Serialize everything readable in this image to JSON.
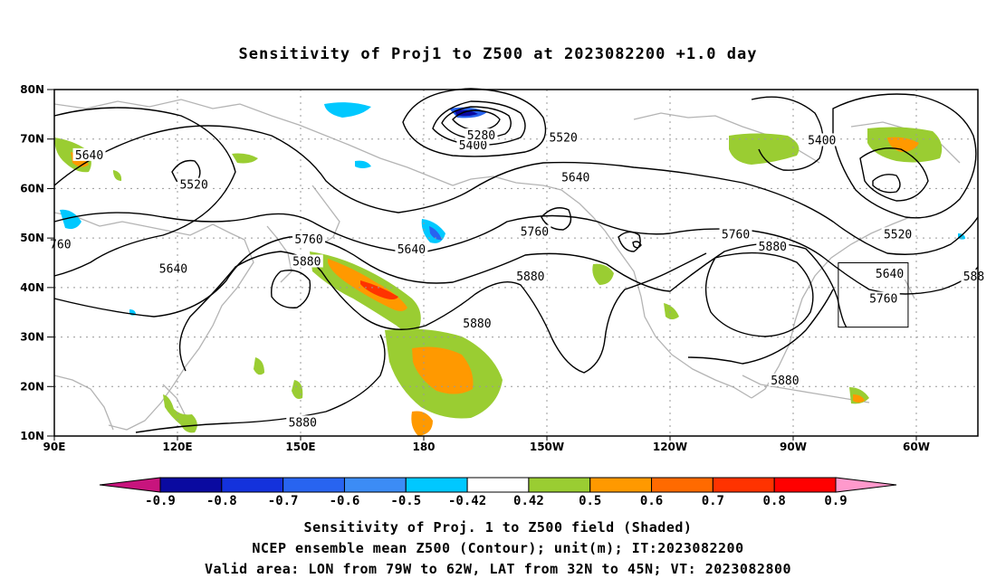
{
  "title": "Sensitivity of Proj1 to Z500 at 2023082200 +1.0 day",
  "axes": {
    "lat_ticks": [
      {
        "label": "80N",
        "value": 80
      },
      {
        "label": "70N",
        "value": 70
      },
      {
        "label": "60N",
        "value": 60
      },
      {
        "label": "50N",
        "value": 50
      },
      {
        "label": "40N",
        "value": 40
      },
      {
        "label": "30N",
        "value": 30
      },
      {
        "label": "20N",
        "value": 20
      },
      {
        "label": "10N",
        "value": 10
      }
    ],
    "lon_ticks": [
      {
        "label": "90E",
        "value": 90
      },
      {
        "label": "120E",
        "value": 120
      },
      {
        "label": "150E",
        "value": 150
      },
      {
        "label": "180",
        "value": 180
      },
      {
        "label": "150W",
        "value": 210
      },
      {
        "label": "120W",
        "value": 240
      },
      {
        "label": "90W",
        "value": 270
      },
      {
        "label": "60W",
        "value": 300
      }
    ],
    "lon_range": [
      90,
      315
    ],
    "lat_range": [
      10,
      80
    ],
    "grid": "dotted"
  },
  "colorbar": {
    "labels": [
      "-0.9",
      "-0.8",
      "-0.7",
      "-0.6",
      "-0.5",
      "-0.42",
      "0.42",
      "0.5",
      "0.6",
      "0.7",
      "0.8",
      "0.9"
    ],
    "colors": [
      "#c8147d",
      "#0a0aa0",
      "#1432dc",
      "#2864f0",
      "#3c8cf5",
      "#00c8ff",
      "#ffffff",
      "#9acd32",
      "#ff9900",
      "#ff6a00",
      "#ff3300",
      "#ff0000",
      "#ff99cc"
    ]
  },
  "contour_labels": [
    {
      "text": "5640",
      "lon": 98.5,
      "lat": 66.5
    },
    {
      "text": "5520",
      "lon": 124,
      "lat": 60.5
    },
    {
      "text": "5640",
      "lon": 119,
      "lat": 43.5
    },
    {
      "text": "760",
      "lon": 91.5,
      "lat": 48.5
    },
    {
      "text": "5760",
      "lon": 152,
      "lat": 49.5
    },
    {
      "text": "5880",
      "lon": 151.5,
      "lat": 45
    },
    {
      "text": "5640",
      "lon": 177,
      "lat": 47.5
    },
    {
      "text": "5880",
      "lon": 150.5,
      "lat": 12.5
    },
    {
      "text": "5880",
      "lon": 193,
      "lat": 32.5
    },
    {
      "text": "5880",
      "lon": 206,
      "lat": 42
    },
    {
      "text": "5760",
      "lon": 207,
      "lat": 51
    },
    {
      "text": "5400",
      "lon": 192,
      "lat": 68.5
    },
    {
      "text": "5280",
      "lon": 194,
      "lat": 70.5
    },
    {
      "text": "5520",
      "lon": 214,
      "lat": 70
    },
    {
      "text": "5640",
      "lon": 217,
      "lat": 62
    },
    {
      "text": "5760",
      "lon": 256,
      "lat": 50.5
    },
    {
      "text": "5880",
      "lon": 265,
      "lat": 48
    },
    {
      "text": "5400",
      "lon": 277,
      "lat": 69.5
    },
    {
      "text": "5520",
      "lon": 295.5,
      "lat": 50.5
    },
    {
      "text": "5640",
      "lon": 293.5,
      "lat": 42.5
    },
    {
      "text": "5760",
      "lon": 292,
      "lat": 37.5
    },
    {
      "text": "588",
      "lon": 314,
      "lat": 42
    },
    {
      "text": "5880",
      "lon": 268,
      "lat": 21
    }
  ],
  "valid_box": {
    "lon_min": 281,
    "lon_max": 298,
    "lat_min": 32,
    "lat_max": 45
  },
  "captions": {
    "line1": "Sensitivity of Proj. 1 to Z500 field (Shaded)",
    "line2": "NCEP ensemble mean Z500 (Contour); unit(m); IT:2023082200",
    "line3": "Valid area: LON from 79W to 62W, LAT from 32N to 45N; VT: 2023082800"
  }
}
